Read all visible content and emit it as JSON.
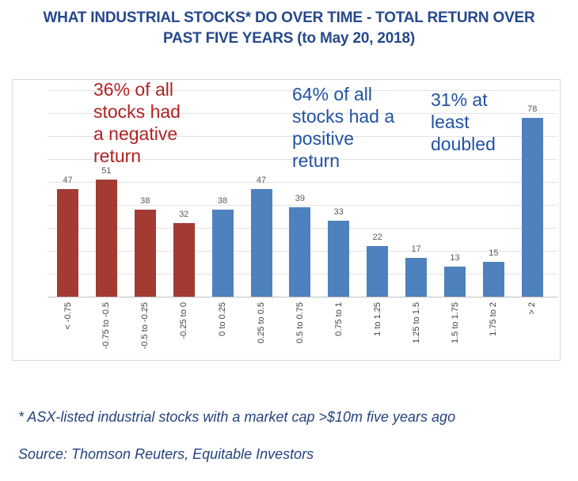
{
  "title": "WHAT INDUSTRIAL STOCKS* DO OVER TIME - TOTAL RETURN OVER\nPAST FIVE YEARS (to May 20, 2018)",
  "annotations": [
    {
      "text": "36% of all\nstocks had\na negative\nreturn",
      "color": "#B22222"
    },
    {
      "text": "64% of all\nstocks had a\npositive\nreturn",
      "color": "#2152A3"
    },
    {
      "text": "31% at\nleast\ndoubled",
      "color": "#2152A3"
    }
  ],
  "chart_data": {
    "type": "bar",
    "title": "WHAT INDUSTRIAL STOCKS* DO OVER TIME - TOTAL RETURN OVER PAST FIVE YEARS (to May 20, 2018)",
    "categories": [
      "< -0.75",
      "-0.75 to -0.5",
      "-0.5 to -0.25",
      "-0.25 to 0",
      "0 to 0.25",
      "0.25 to 0.5",
      "0.5 to 0.75",
      "0.75 to 1",
      "1 to 1.25",
      "1.25 to 1.5",
      "1.5 to 1.75",
      "1.75 to 2",
      "> 2"
    ],
    "values": [
      47,
      51,
      38,
      32,
      38,
      47,
      39,
      33,
      22,
      17,
      13,
      15,
      78
    ],
    "negative_bar_count": 4,
    "bar_colors": {
      "negative": "#A33B33",
      "positive": "#4E81BD"
    },
    "value_label_color": "#595959",
    "xlabel": "",
    "ylabel": "",
    "ylim": [
      0,
      90
    ],
    "gridline_step": 10,
    "gridlines": true,
    "data_labels": true,
    "legend": false
  },
  "footnotes": {
    "asterisk": "* ASX-listed industrial stocks with a market cap >$10m five years ago",
    "source": "Source: Thomson Reuters, Equitable Investors"
  }
}
